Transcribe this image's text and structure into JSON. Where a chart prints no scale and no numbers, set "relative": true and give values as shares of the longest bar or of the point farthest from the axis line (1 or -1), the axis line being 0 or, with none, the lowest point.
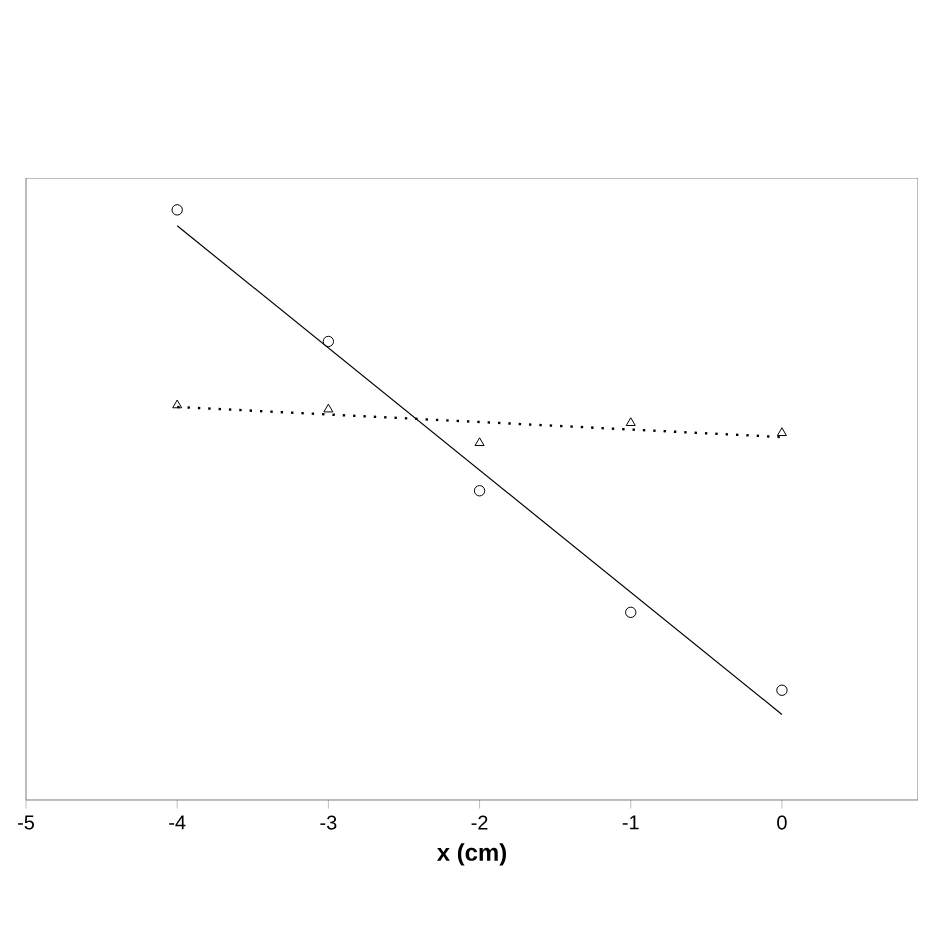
{
  "chart_data": {
    "type": "scatter",
    "relative": true,
    "xlabel": "x (cm)",
    "xlim": [
      -5,
      0.9
    ],
    "xticks": [
      -5,
      -4,
      -3,
      -2,
      -1,
      0
    ],
    "tick_labels": "x",
    "grid": false,
    "legend": false,
    "series": [
      {
        "color": "#000000",
        "marker": "circle",
        "x": [
          -4,
          -3,
          -2,
          -1,
          0
        ],
        "values": [
          1,
          0.777,
          0.524,
          0.318,
          0.186
        ]
      },
      {
        "type": "line",
        "color": "#000000",
        "marker": "none",
        "line_style": "solid",
        "x": [
          -4,
          0
        ],
        "values": [
          0.973,
          0.145
        ]
      },
      {
        "color": "#000000",
        "marker": "triangle",
        "x": [
          -4,
          -3,
          -2,
          -1,
          0
        ],
        "values": [
          0.669,
          0.662,
          0.605,
          0.639,
          0.622
        ]
      },
      {
        "type": "line",
        "color": "#000000",
        "marker": "none",
        "line_style": "dotted",
        "x": [
          -4,
          0
        ],
        "values": [
          0.666,
          0.615
        ]
      }
    ]
  }
}
